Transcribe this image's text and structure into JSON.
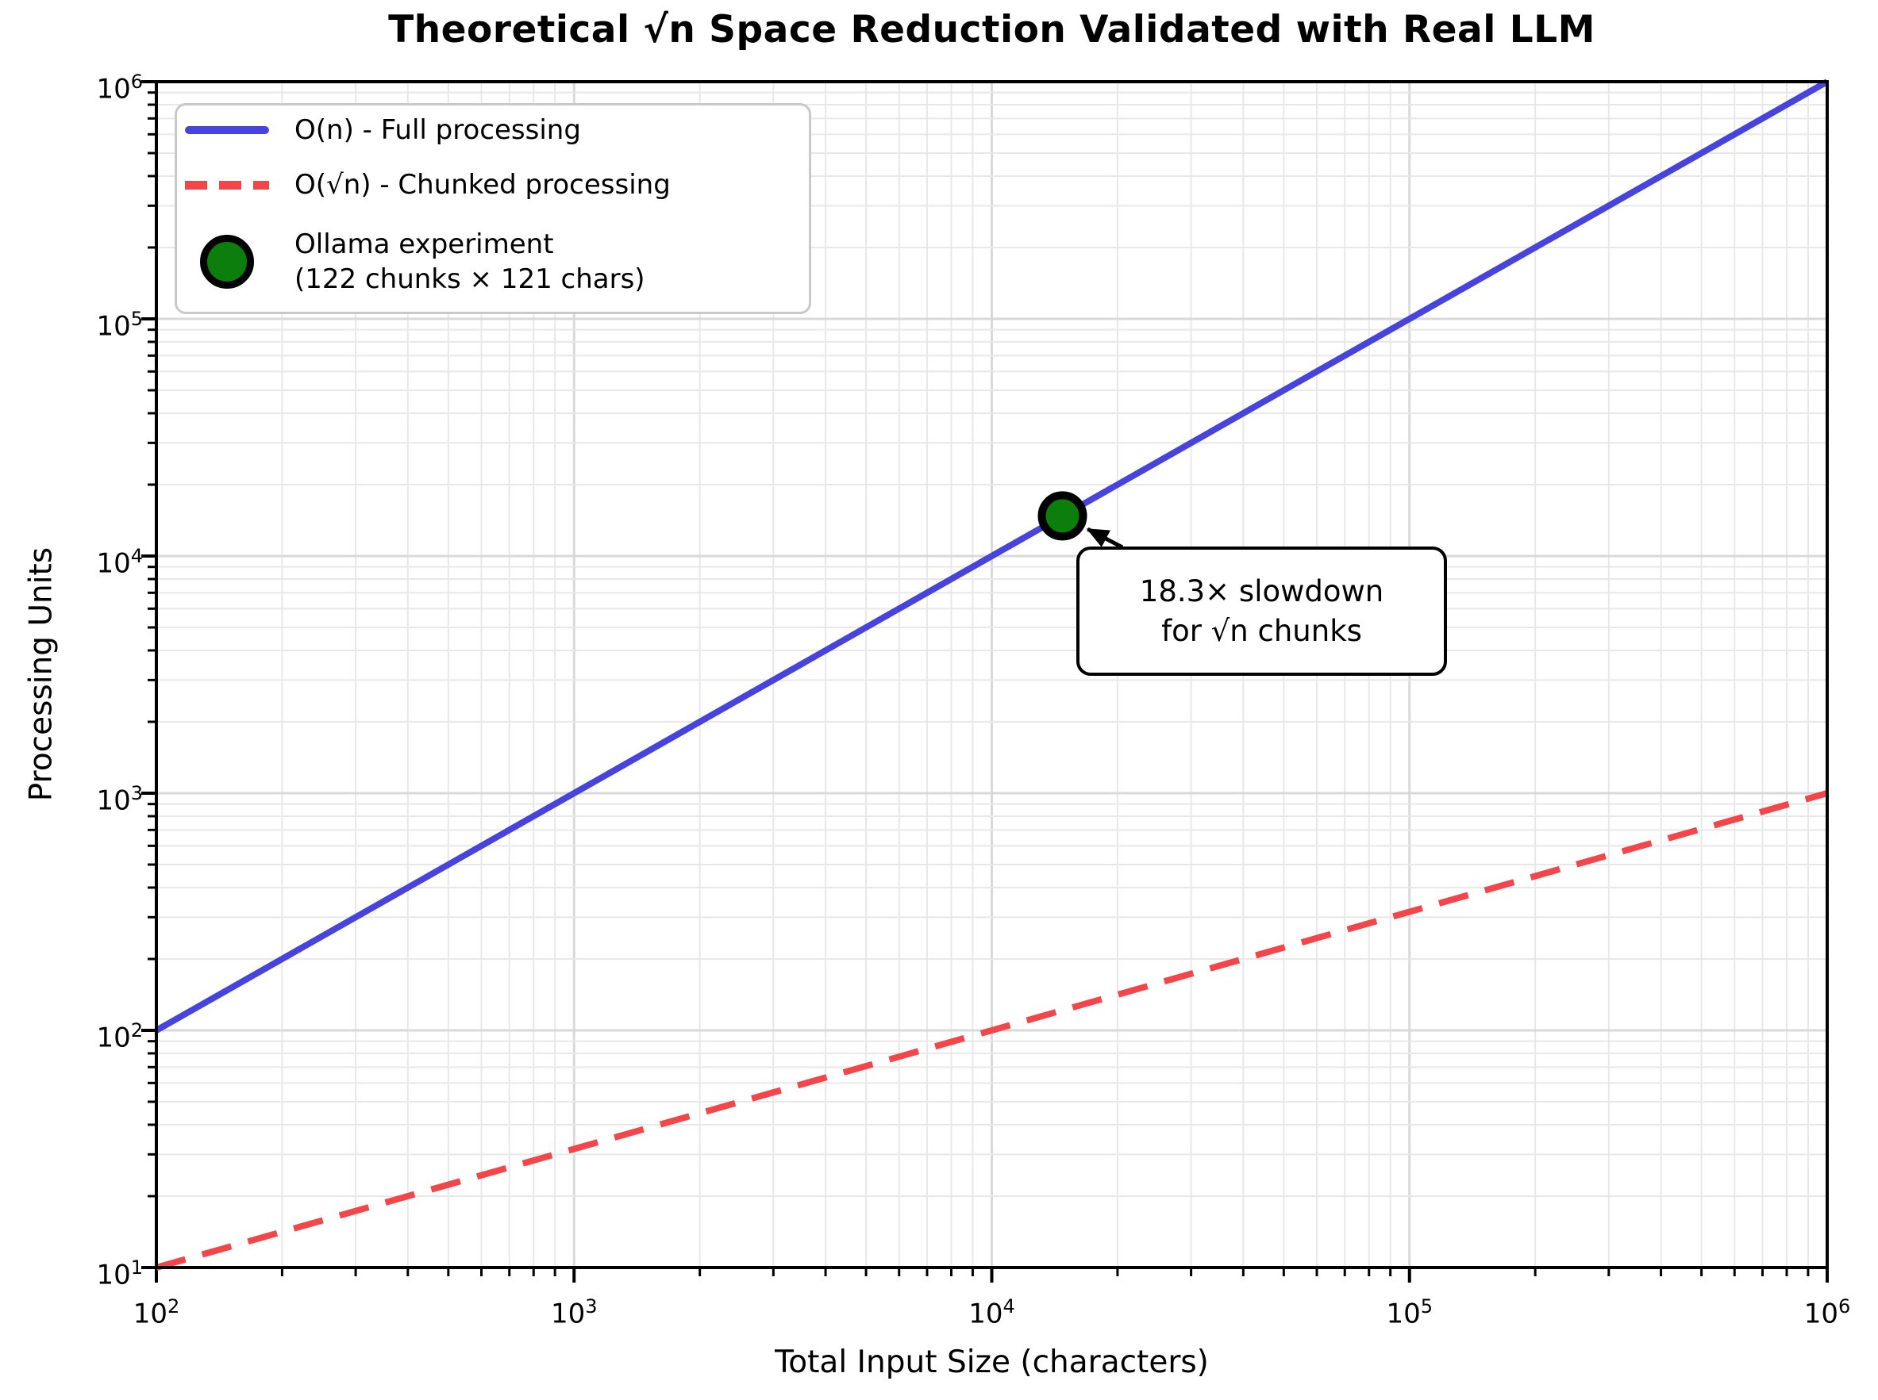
{
  "figure": {
    "title": "Theoretical √n Space Reduction Validated with Real LLM",
    "x_label": "Total Input Size (characters)",
    "y_label": "Processing Units"
  },
  "legend": {
    "position": "upper left",
    "items": [
      {
        "label": "O(n) - Full processing"
      },
      {
        "label": "O(√n) - Chunked processing"
      },
      {
        "label": "Ollama experiment",
        "label2": "(122 chunks × 121 chars)"
      }
    ]
  },
  "annotation": {
    "line1": "18.3× slowdown",
    "line2": "for √n chunks"
  },
  "colors": {
    "line_full": "#4744dd",
    "line_chunked": "#f2464a",
    "marker_fill": "#0b7e0b",
    "marker_edge": "#000000",
    "grid_major": "#d9d9d9",
    "grid_minor": "#e8e8e8",
    "spine": "#000000"
  },
  "chart_data": {
    "type": "line",
    "title": "Theoretical √n Space Reduction Validated with Real LLM",
    "xlabel": "Total Input Size (characters)",
    "ylabel": "Processing Units",
    "x_scale": "log",
    "y_scale": "log",
    "xlim": [
      100,
      1000000
    ],
    "ylim": [
      10,
      1000000
    ],
    "x_tick_exponents": [
      2,
      3,
      4,
      5,
      6
    ],
    "y_tick_exponents": [
      1,
      2,
      3,
      4,
      5,
      6
    ],
    "grid": "major and minor log gridlines, light gray",
    "legend_position": "upper left",
    "series": [
      {
        "name": "O(n) - Full processing",
        "style": "solid",
        "color": "#4744dd",
        "x": [
          100,
          1000,
          10000,
          100000,
          1000000
        ],
        "y": [
          100,
          1000,
          10000,
          100000,
          1000000
        ]
      },
      {
        "name": "O(√n) - Chunked processing",
        "style": "dashed",
        "color": "#f2464a",
        "x": [
          100,
          1000,
          10000,
          100000,
          1000000
        ],
        "y": [
          10,
          31.62,
          100,
          316.23,
          1000
        ]
      },
      {
        "name": "Ollama experiment (122 chunks × 121 chars)",
        "style": "scatter",
        "color": "#0b7e0b",
        "x": [
          14762
        ],
        "y": [
          14762
        ]
      }
    ],
    "experiment": {
      "chunks": 122,
      "chunk_chars": 121,
      "total_chars": 14762,
      "slowdown": "18.3×"
    },
    "annotation": {
      "text": "18.3× slowdown for √n chunks",
      "point": [
        14762,
        14762
      ]
    }
  }
}
